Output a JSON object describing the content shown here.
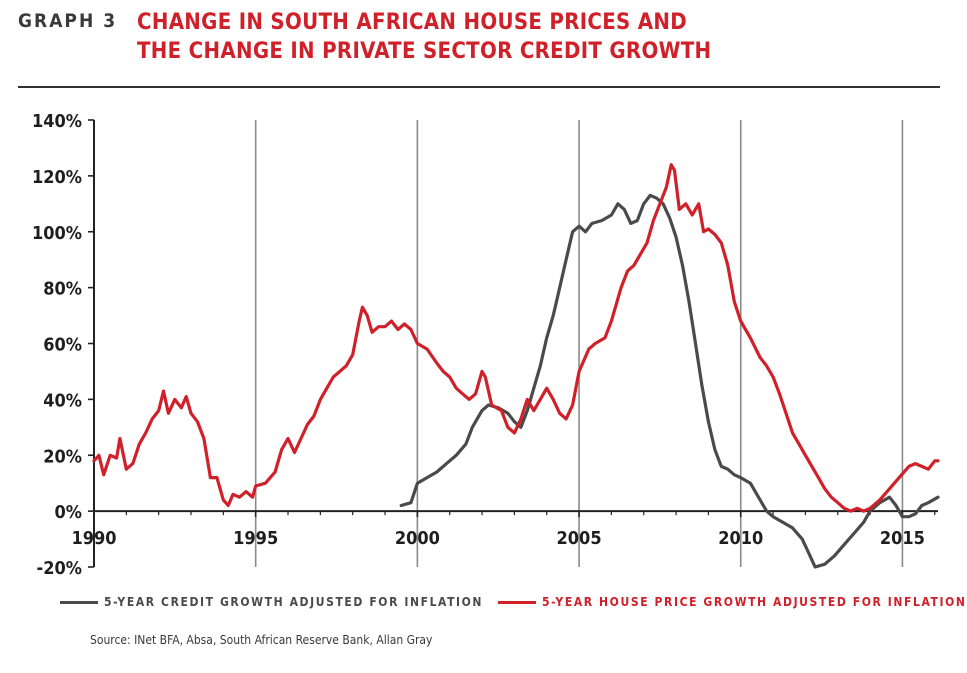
{
  "header": {
    "graph_label": "GRAPH 3",
    "title_line1": "CHANGE IN SOUTH AFRICAN HOUSE PRICES AND",
    "title_line2": "THE CHANGE IN PRIVATE SECTOR CREDIT GROWTH"
  },
  "source": "Source: INet BFA, Absa, South African Reserve Bank, Allan Gray",
  "colors": {
    "credit": "#4a4a4a",
    "house": "#d0202a",
    "title": "#d0202a",
    "grid": "#8a8a8a",
    "axis": "#222222"
  },
  "chart_data": {
    "type": "line",
    "title": "CHANGE IN SOUTH AFRICAN HOUSE PRICES AND THE CHANGE IN PRIVATE SECTOR CREDIT GROWTH",
    "xlabel": "",
    "ylabel": "",
    "xlim": [
      1990,
      2016.1
    ],
    "ylim": [
      -20,
      140
    ],
    "x_ticks": [
      1990,
      1995,
      2000,
      2005,
      2010,
      2015
    ],
    "x_tick_labels": [
      "1990",
      "1995",
      "2000",
      "2005",
      "2010",
      "2015"
    ],
    "y_ticks": [
      -20,
      0,
      20,
      40,
      60,
      80,
      100,
      120,
      140
    ],
    "y_tick_labels": [
      "-20%",
      "0%",
      "20%",
      "40%",
      "60%",
      "80%",
      "100%",
      "120%",
      "140%"
    ],
    "grid": "vertical lines at x ticks 1995-2015",
    "legend": "bottom",
    "series": [
      {
        "name": "5-YEAR CREDIT GROWTH ADJUSTED FOR INFLATION",
        "color": "#4a4a4a",
        "points": [
          [
            1999.5,
            2
          ],
          [
            1999.8,
            3
          ],
          [
            2000.0,
            10
          ],
          [
            2000.3,
            12
          ],
          [
            2000.6,
            14
          ],
          [
            2000.9,
            17
          ],
          [
            2001.2,
            20
          ],
          [
            2001.5,
            24
          ],
          [
            2001.7,
            30
          ],
          [
            2002.0,
            36
          ],
          [
            2002.2,
            38
          ],
          [
            2002.5,
            37
          ],
          [
            2002.8,
            35
          ],
          [
            2003.0,
            32
          ],
          [
            2003.2,
            30
          ],
          [
            2003.4,
            36
          ],
          [
            2003.6,
            44
          ],
          [
            2003.8,
            52
          ],
          [
            2004.0,
            62
          ],
          [
            2004.2,
            70
          ],
          [
            2004.4,
            80
          ],
          [
            2004.6,
            90
          ],
          [
            2004.8,
            100
          ],
          [
            2005.0,
            102
          ],
          [
            2005.2,
            100
          ],
          [
            2005.4,
            103
          ],
          [
            2005.7,
            104
          ],
          [
            2006.0,
            106
          ],
          [
            2006.2,
            110
          ],
          [
            2006.4,
            108
          ],
          [
            2006.6,
            103
          ],
          [
            2006.8,
            104
          ],
          [
            2007.0,
            110
          ],
          [
            2007.2,
            113
          ],
          [
            2007.4,
            112
          ],
          [
            2007.6,
            110
          ],
          [
            2007.8,
            105
          ],
          [
            2008.0,
            98
          ],
          [
            2008.2,
            88
          ],
          [
            2008.4,
            75
          ],
          [
            2008.6,
            60
          ],
          [
            2008.8,
            45
          ],
          [
            2009.0,
            32
          ],
          [
            2009.2,
            22
          ],
          [
            2009.4,
            16
          ],
          [
            2009.6,
            15
          ],
          [
            2009.8,
            13
          ],
          [
            2010.0,
            12
          ],
          [
            2010.3,
            10
          ],
          [
            2010.6,
            4
          ],
          [
            2010.8,
            0
          ],
          [
            2011.0,
            -2
          ],
          [
            2011.3,
            -4
          ],
          [
            2011.6,
            -6
          ],
          [
            2011.9,
            -10
          ],
          [
            2012.1,
            -15
          ],
          [
            2012.3,
            -20
          ],
          [
            2012.6,
            -19
          ],
          [
            2012.9,
            -16
          ],
          [
            2013.2,
            -12
          ],
          [
            2013.5,
            -8
          ],
          [
            2013.8,
            -4
          ],
          [
            2014.0,
            0
          ],
          [
            2014.3,
            3
          ],
          [
            2014.6,
            5
          ],
          [
            2014.8,
            2
          ],
          [
            2015.0,
            -2
          ],
          [
            2015.2,
            -2
          ],
          [
            2015.4,
            -1
          ],
          [
            2015.6,
            2
          ],
          [
            2015.8,
            3
          ],
          [
            2016.1,
            5
          ]
        ]
      },
      {
        "name": "5-YEAR HOUSE PRICE GROWTH ADJUSTED FOR INFLATION",
        "color": "#d0202a",
        "points": [
          [
            1990.0,
            18
          ],
          [
            1990.15,
            20
          ],
          [
            1990.3,
            13
          ],
          [
            1990.5,
            20
          ],
          [
            1990.7,
            19
          ],
          [
            1990.8,
            26
          ],
          [
            1991.0,
            15
          ],
          [
            1991.2,
            17
          ],
          [
            1991.4,
            24
          ],
          [
            1991.6,
            28
          ],
          [
            1991.8,
            33
          ],
          [
            1992.0,
            36
          ],
          [
            1992.15,
            43
          ],
          [
            1992.3,
            35
          ],
          [
            1992.5,
            40
          ],
          [
            1992.7,
            37
          ],
          [
            1992.85,
            41
          ],
          [
            1993.0,
            35
          ],
          [
            1993.2,
            32
          ],
          [
            1993.4,
            26
          ],
          [
            1993.6,
            12
          ],
          [
            1993.8,
            12
          ],
          [
            1994.0,
            4
          ],
          [
            1994.15,
            2
          ],
          [
            1994.3,
            6
          ],
          [
            1994.5,
            5
          ],
          [
            1994.7,
            7
          ],
          [
            1994.9,
            5
          ],
          [
            1995.0,
            9
          ],
          [
            1995.3,
            10
          ],
          [
            1995.6,
            14
          ],
          [
            1995.8,
            22
          ],
          [
            1996.0,
            26
          ],
          [
            1996.2,
            21
          ],
          [
            1996.4,
            26
          ],
          [
            1996.6,
            31
          ],
          [
            1996.8,
            34
          ],
          [
            1997.0,
            40
          ],
          [
            1997.2,
            44
          ],
          [
            1997.4,
            48
          ],
          [
            1997.6,
            50
          ],
          [
            1997.8,
            52
          ],
          [
            1998.0,
            56
          ],
          [
            1998.2,
            68
          ],
          [
            1998.3,
            73
          ],
          [
            1998.45,
            70
          ],
          [
            1998.6,
            64
          ],
          [
            1998.8,
            66
          ],
          [
            1999.0,
            66
          ],
          [
            1999.2,
            68
          ],
          [
            1999.4,
            65
          ],
          [
            1999.6,
            67
          ],
          [
            1999.8,
            65
          ],
          [
            2000.0,
            60
          ],
          [
            2000.3,
            58
          ],
          [
            2000.6,
            53
          ],
          [
            2000.8,
            50
          ],
          [
            2001.0,
            48
          ],
          [
            2001.2,
            44
          ],
          [
            2001.4,
            42
          ],
          [
            2001.6,
            40
          ],
          [
            2001.8,
            42
          ],
          [
            2002.0,
            50
          ],
          [
            2002.1,
            48
          ],
          [
            2002.3,
            38
          ],
          [
            2002.6,
            36
          ],
          [
            2002.8,
            30
          ],
          [
            2003.0,
            28
          ],
          [
            2003.2,
            33
          ],
          [
            2003.4,
            40
          ],
          [
            2003.6,
            36
          ],
          [
            2003.8,
            40
          ],
          [
            2004.0,
            44
          ],
          [
            2004.2,
            40
          ],
          [
            2004.4,
            35
          ],
          [
            2004.6,
            33
          ],
          [
            2004.8,
            38
          ],
          [
            2005.0,
            50
          ],
          [
            2005.3,
            58
          ],
          [
            2005.5,
            60
          ],
          [
            2005.8,
            62
          ],
          [
            2006.0,
            68
          ],
          [
            2006.3,
            80
          ],
          [
            2006.5,
            86
          ],
          [
            2006.7,
            88
          ],
          [
            2006.9,
            92
          ],
          [
            2007.1,
            96
          ],
          [
            2007.3,
            104
          ],
          [
            2007.5,
            110
          ],
          [
            2007.7,
            116
          ],
          [
            2007.85,
            124
          ],
          [
            2007.95,
            122
          ],
          [
            2008.1,
            108
          ],
          [
            2008.3,
            110
          ],
          [
            2008.5,
            106
          ],
          [
            2008.7,
            110
          ],
          [
            2008.85,
            100
          ],
          [
            2009.0,
            101
          ],
          [
            2009.2,
            99
          ],
          [
            2009.4,
            96
          ],
          [
            2009.6,
            88
          ],
          [
            2009.8,
            75
          ],
          [
            2010.0,
            68
          ],
          [
            2010.3,
            62
          ],
          [
            2010.6,
            55
          ],
          [
            2010.8,
            52
          ],
          [
            2011.0,
            48
          ],
          [
            2011.2,
            42
          ],
          [
            2011.4,
            35
          ],
          [
            2011.6,
            28
          ],
          [
            2011.8,
            24
          ],
          [
            2012.0,
            20
          ],
          [
            2012.2,
            16
          ],
          [
            2012.4,
            12
          ],
          [
            2012.6,
            8
          ],
          [
            2012.8,
            5
          ],
          [
            2013.0,
            3
          ],
          [
            2013.2,
            1
          ],
          [
            2013.4,
            0
          ],
          [
            2013.6,
            1
          ],
          [
            2013.8,
            0
          ],
          [
            2014.0,
            1
          ],
          [
            2014.3,
            4
          ],
          [
            2014.6,
            8
          ],
          [
            2014.9,
            12
          ],
          [
            2015.2,
            16
          ],
          [
            2015.4,
            17
          ],
          [
            2015.6,
            16
          ],
          [
            2015.8,
            15
          ],
          [
            2016.0,
            18
          ],
          [
            2016.1,
            18
          ]
        ]
      }
    ]
  }
}
